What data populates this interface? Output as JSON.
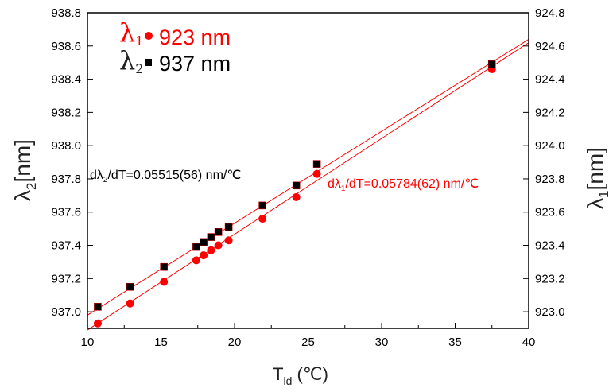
{
  "chart_data": {
    "type": "scatter",
    "xlabel": "T",
    "xlabel_sub": "ld",
    "xlabel_unit": " (℃)",
    "ylabel_left": "λ",
    "ylabel_left_sub": "2",
    "ylabel_left_unit": "[nm]",
    "ylabel_right": "λ",
    "ylabel_right_sub": "1",
    "ylabel_right_unit": "[nm]",
    "xlim": [
      10,
      40
    ],
    "ylim_left": [
      936.9,
      938.8
    ],
    "ylim_right": [
      922.9,
      924.8
    ],
    "x_ticks": [
      "10",
      "15",
      "20",
      "25",
      "30",
      "35",
      "40"
    ],
    "y_left_ticks": [
      "937.0",
      "937.2",
      "937.4",
      "937.6",
      "937.8",
      "938.0",
      "938.2",
      "938.4",
      "938.6",
      "938.8"
    ],
    "y_right_ticks": [
      "923.0",
      "923.2",
      "923.4",
      "923.6",
      "923.8",
      "924.0",
      "924.2",
      "924.4",
      "924.6",
      "924.8"
    ],
    "grid": false,
    "legend_position": "top-left",
    "series": [
      {
        "name": "λ",
        "name_sub": "1",
        "label": "923 nm",
        "axis": "right",
        "marker": "circle",
        "color": "#ff0000",
        "x": [
          10.7,
          12.9,
          15.2,
          17.4,
          17.9,
          18.4,
          18.9,
          19.6,
          21.9,
          24.2,
          25.6,
          37.5
        ],
        "y": [
          922.93,
          923.05,
          923.18,
          923.31,
          923.34,
          923.37,
          923.4,
          923.43,
          923.56,
          923.69,
          923.83,
          924.46
        ]
      },
      {
        "name": "λ",
        "name_sub": "2",
        "label": "937 nm",
        "axis": "left",
        "marker": "square",
        "color": "#000000",
        "x": [
          10.7,
          12.9,
          15.2,
          17.4,
          17.9,
          18.4,
          18.9,
          19.6,
          21.9,
          24.2,
          25.6,
          37.5
        ],
        "y": [
          937.03,
          937.15,
          937.27,
          937.39,
          937.42,
          937.45,
          937.48,
          937.51,
          937.64,
          937.76,
          937.89,
          938.49
        ]
      }
    ],
    "fit_lines": [
      {
        "series": "λ1",
        "axis": "right",
        "color": "#ff0000",
        "x": [
          10.0,
          40.0
        ],
        "y": [
          922.89,
          924.62
        ]
      },
      {
        "series": "λ2",
        "axis": "left",
        "color": "#ff0000",
        "x": [
          10.0,
          40.0
        ],
        "y": [
          936.98,
          938.64
        ]
      }
    ],
    "annotations": [
      {
        "prefix": "dλ",
        "sub": "2",
        "suffix": "/dT=0.05515(56) nm/℃",
        "color": "#000000"
      },
      {
        "prefix": "dλ",
        "sub": "1",
        "suffix": "/dT=0.05784(62) nm/℃",
        "color": "#ff0000"
      }
    ]
  }
}
